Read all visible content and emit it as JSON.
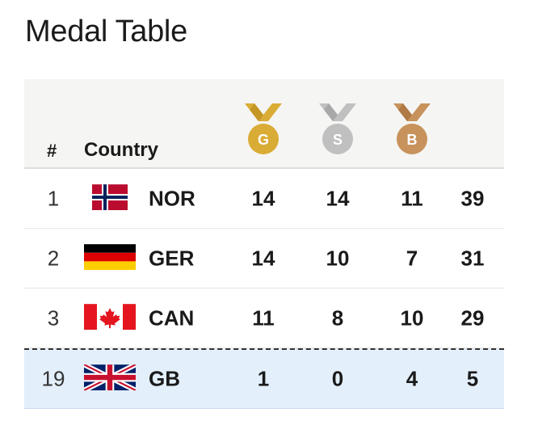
{
  "title": "Medal Table",
  "header": {
    "rank": "#",
    "country": "Country",
    "gold_letter": "G",
    "silver_letter": "S",
    "bronze_letter": "B"
  },
  "colors": {
    "gold": "#d9ac35",
    "silver": "#c0c0c0",
    "bronze": "#c8925c",
    "highlight_row": "#e3effb",
    "header_bg": "#f5f5f3"
  },
  "rows": [
    {
      "rank": "1",
      "code": "NOR",
      "flag_icon": "norway-flag-icon",
      "gold": "14",
      "silver": "14",
      "bronze": "11",
      "total": "39"
    },
    {
      "rank": "2",
      "code": "GER",
      "flag_icon": "germany-flag-icon",
      "gold": "14",
      "silver": "10",
      "bronze": "7",
      "total": "31"
    },
    {
      "rank": "3",
      "code": "CAN",
      "flag_icon": "canada-flag-icon",
      "gold": "11",
      "silver": "8",
      "bronze": "10",
      "total": "29"
    },
    {
      "rank": "19",
      "code": "GB",
      "flag_icon": "uk-flag-icon",
      "gold": "1",
      "silver": "0",
      "bronze": "4",
      "total": "5"
    }
  ]
}
